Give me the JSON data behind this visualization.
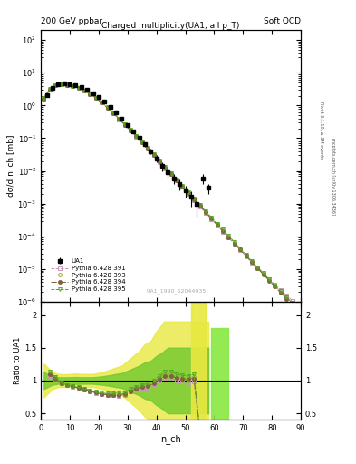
{
  "title_left": "200 GeV ppbar",
  "title_right": "Soft QCD",
  "plot_title": "Charged multiplicity(UA1, all p_T)",
  "ylabel_main": "dσ/d n_ch [mb]",
  "ylabel_ratio": "Ratio to UA1",
  "xlabel": "n_ch",
  "watermark": "UA1_1990_S2044935",
  "right_label_top": "Rivet 3.1.10, ≥ 3M events",
  "right_label_mid": "mcplots.cern.ch [arXiv:1306.3436]",
  "UA1_x": [
    2,
    4,
    6,
    8,
    10,
    12,
    14,
    16,
    18,
    20,
    22,
    24,
    26,
    28,
    30,
    32,
    34,
    36,
    38,
    40,
    42,
    44,
    46,
    48,
    50,
    52,
    54,
    56,
    58
  ],
  "UA1_y": [
    2.1,
    3.5,
    4.5,
    4.7,
    4.5,
    4.2,
    3.6,
    3.0,
    2.4,
    1.8,
    1.3,
    0.9,
    0.6,
    0.4,
    0.25,
    0.16,
    0.1,
    0.065,
    0.04,
    0.024,
    0.014,
    0.009,
    0.006,
    0.004,
    0.0025,
    0.0016,
    0.001,
    0.006,
    0.003
  ],
  "UA1_yerr_lo": [
    0.15,
    0.15,
    0.15,
    0.15,
    0.15,
    0.15,
    0.12,
    0.1,
    0.08,
    0.07,
    0.06,
    0.05,
    0.04,
    0.03,
    0.025,
    0.02,
    0.015,
    0.012,
    0.008,
    0.006,
    0.004,
    0.003,
    0.002,
    0.0015,
    0.001,
    0.0008,
    0.0006,
    0.002,
    0.001
  ],
  "UA1_yerr_hi": [
    0.15,
    0.15,
    0.15,
    0.15,
    0.15,
    0.15,
    0.12,
    0.1,
    0.08,
    0.07,
    0.06,
    0.05,
    0.04,
    0.03,
    0.025,
    0.02,
    0.015,
    0.012,
    0.008,
    0.006,
    0.004,
    0.003,
    0.002,
    0.0015,
    0.001,
    0.0008,
    0.0006,
    0.002,
    0.001
  ],
  "p391_x": [
    1,
    3,
    5,
    7,
    9,
    11,
    13,
    15,
    17,
    19,
    21,
    23,
    25,
    27,
    29,
    31,
    33,
    35,
    37,
    39,
    41,
    43,
    45,
    47,
    49,
    51,
    53,
    55,
    57,
    59,
    61,
    63,
    65,
    67,
    69,
    71,
    73,
    75,
    77,
    79,
    81,
    83,
    85,
    87,
    89
  ],
  "p391_y": [
    1.5,
    3.0,
    4.1,
    4.4,
    4.25,
    3.95,
    3.45,
    2.85,
    2.25,
    1.7,
    1.22,
    0.85,
    0.58,
    0.38,
    0.255,
    0.17,
    0.112,
    0.073,
    0.047,
    0.03,
    0.019,
    0.012,
    0.0078,
    0.005,
    0.0032,
    0.002,
    0.00128,
    0.00082,
    0.00053,
    0.00034,
    0.000218,
    0.00014,
    9.1e-05,
    5.9e-05,
    3.8e-05,
    2.5e-05,
    1.6e-05,
    1.07e-05,
    7.2e-06,
    4.9e-06,
    3.4e-06,
    2.3e-06,
    1.6e-06,
    1.1e-06,
    7.8e-07
  ],
  "p391_color": "#c896b4",
  "p391_label": "Pythia 6.428 391",
  "p391_marker": "s",
  "p391_ls": "--",
  "p393_x": [
    1,
    3,
    5,
    7,
    9,
    11,
    13,
    15,
    17,
    19,
    21,
    23,
    25,
    27,
    29,
    31,
    33,
    35,
    37,
    39,
    41,
    43,
    45,
    47,
    49,
    51,
    53,
    55,
    57,
    59,
    61,
    63,
    65,
    67,
    69,
    71,
    73,
    75,
    77,
    79,
    81,
    83,
    85,
    87,
    89
  ],
  "p393_y": [
    1.6,
    3.1,
    4.15,
    4.42,
    4.28,
    3.98,
    3.48,
    2.88,
    2.28,
    1.72,
    1.24,
    0.87,
    0.595,
    0.395,
    0.262,
    0.175,
    0.116,
    0.076,
    0.049,
    0.031,
    0.0198,
    0.0126,
    0.0082,
    0.0053,
    0.0034,
    0.00215,
    0.00137,
    0.00088,
    0.00057,
    0.000367,
    0.000236,
    0.000152,
    9.82e-05,
    6.34e-05,
    4.095e-05,
    2.65e-05,
    1.71e-05,
    1.11e-05,
    7.2e-06,
    4.7e-06,
    3.1e-06,
    2.1e-06,
    1.4e-06,
    9.5e-07,
    6.5e-07
  ],
  "p393_color": "#a0a840",
  "p393_label": "Pythia 6.428 393",
  "p393_marker": "o",
  "p393_ls": "-.",
  "p394_x": [
    1,
    3,
    5,
    7,
    9,
    11,
    13,
    15,
    17,
    19,
    21,
    23,
    25,
    27,
    29,
    31,
    33,
    35,
    37,
    39,
    41,
    43,
    45,
    47,
    49,
    51,
    53,
    55,
    57,
    59,
    61,
    63,
    65,
    67,
    69,
    71,
    73,
    75,
    77,
    79,
    81,
    83,
    85,
    87,
    89
  ],
  "p394_y": [
    1.55,
    3.05,
    4.12,
    4.41,
    4.26,
    3.96,
    3.46,
    2.86,
    2.26,
    1.71,
    1.23,
    0.86,
    0.587,
    0.39,
    0.259,
    0.172,
    0.114,
    0.074,
    0.048,
    0.0305,
    0.0194,
    0.0123,
    0.008,
    0.0052,
    0.00332,
    0.0021,
    0.00134,
    0.00086,
    0.00055,
    0.000354,
    0.000227,
    0.000146,
    9.42e-05,
    6.08e-05,
    3.93e-05,
    2.54e-05,
    1.64e-05,
    1.06e-05,
    6.87e-06,
    4.45e-06,
    2.89e-06,
    1.88e-06,
    1.22e-06,
    7.9e-07,
    5.2e-07
  ],
  "p394_color": "#806040",
  "p394_label": "Pythia 6.428 394",
  "p394_marker": "o",
  "p394_ls": "-.",
  "p395_x": [
    1,
    3,
    5,
    7,
    9,
    11,
    13,
    15,
    17,
    19,
    21,
    23,
    25,
    27,
    29,
    31,
    33,
    35,
    37,
    39,
    41,
    43,
    45,
    47,
    49,
    51,
    53,
    55,
    57,
    59,
    61,
    63,
    65,
    67,
    69,
    71,
    73,
    75,
    77,
    79,
    81,
    83,
    85,
    87,
    89
  ],
  "p395_y": [
    1.7,
    3.2,
    4.2,
    4.45,
    4.3,
    4.0,
    3.5,
    2.9,
    2.3,
    1.74,
    1.26,
    0.88,
    0.605,
    0.405,
    0.268,
    0.178,
    0.118,
    0.077,
    0.05,
    0.032,
    0.0204,
    0.013,
    0.0085,
    0.0055,
    0.0035,
    0.0022,
    0.00142,
    0.00092,
    0.000594,
    0.000384,
    0.000248,
    0.00016,
    0.000103,
    6.68e-05,
    4.32e-05,
    2.79e-05,
    1.8e-05,
    1.16e-05,
    7.5e-06,
    4.9e-06,
    3.2e-06,
    2.1e-06,
    1.4e-06,
    9.3e-07,
    6.2e-07
  ],
  "p395_color": "#50a820",
  "p395_label": "Pythia 6.428 395",
  "p395_marker": "v",
  "p395_ls": "--",
  "ylim_main": [
    1e-06,
    200
  ],
  "xlim": [
    0,
    90
  ],
  "ratio_ylim": [
    0.4,
    2.2
  ],
  "ratio_yticks": [
    0.5,
    1.0,
    1.5,
    2.0
  ],
  "bg_color": "#ffffff"
}
